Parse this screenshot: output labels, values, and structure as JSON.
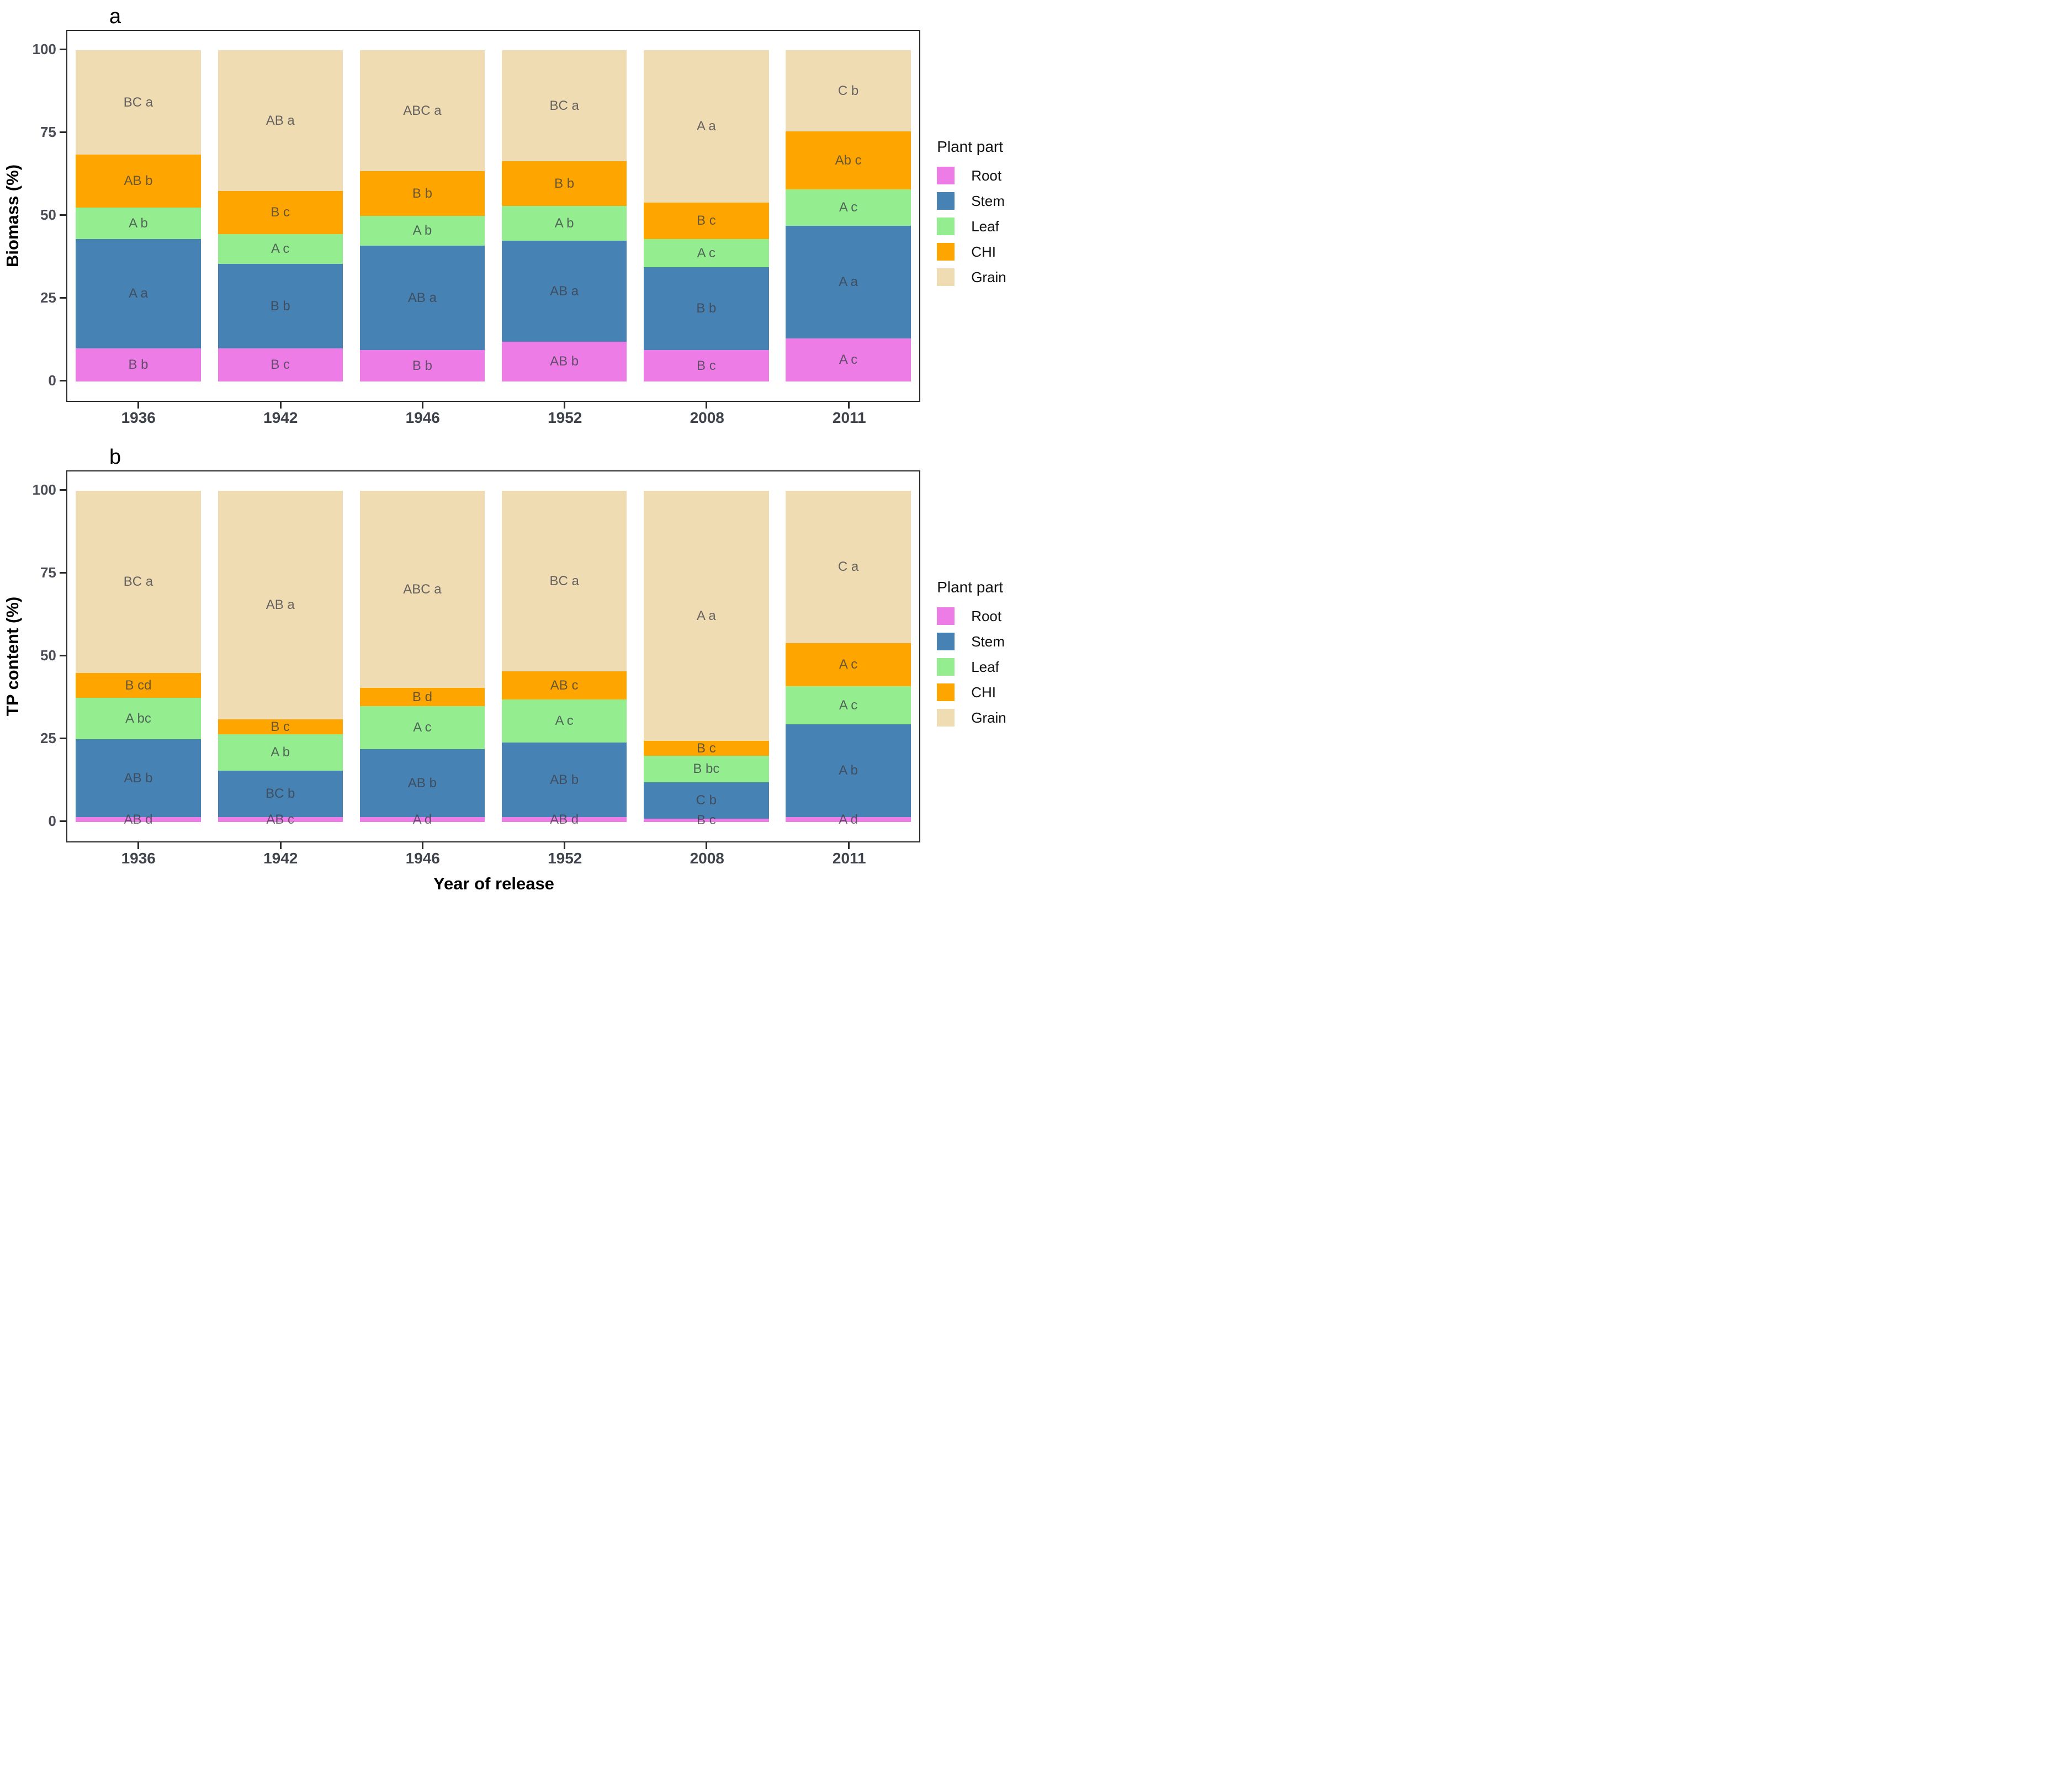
{
  "chart_data": [
    {
      "type": "bar",
      "stacked": true,
      "panel_letter": "a",
      "ylabel": "Biomass (%)",
      "xlabel": "",
      "ylim": [
        0,
        100
      ],
      "yticks": [
        100,
        75,
        50,
        25,
        0
      ],
      "grid": "off",
      "legend_position": "right",
      "legend_title": "Plant part",
      "categories": [
        "1936",
        "1942",
        "1946",
        "1952",
        "2008",
        "2011"
      ],
      "series": [
        {
          "name": "Root",
          "color": "#EE7CE6",
          "values": [
            10,
            10,
            9.5,
            12,
            9.5,
            13
          ],
          "labels": [
            "B b",
            "B c",
            "B b",
            "AB b",
            "B c",
            "A c"
          ]
        },
        {
          "name": "Stem",
          "color": "#4682B4",
          "values": [
            33,
            25.5,
            31.5,
            30.5,
            25,
            34
          ],
          "labels": [
            "A a",
            "B b",
            "AB a",
            "AB a",
            "B b",
            "A a"
          ]
        },
        {
          "name": "Leaf",
          "color": "#94EE90",
          "values": [
            9.5,
            9,
            9,
            10.5,
            8.5,
            11
          ],
          "labels": [
            "A b",
            "A c",
            "A b",
            "A b",
            "A c",
            "A c"
          ]
        },
        {
          "name": "CHI",
          "color": "#FFA500",
          "values": [
            16,
            13,
            13.5,
            13.5,
            11,
            17.5
          ],
          "labels": [
            "AB b",
            "B c",
            "B b",
            "B b",
            "B c",
            "Ab c"
          ]
        },
        {
          "name": "Grain",
          "color": "#F0DCB2",
          "values": [
            31.5,
            42.5,
            36.5,
            33.5,
            46,
            24.5
          ],
          "labels": [
            "BC a",
            "AB a",
            "ABC a",
            "BC a",
            "A a",
            "C b"
          ]
        }
      ]
    },
    {
      "type": "bar",
      "stacked": true,
      "panel_letter": "b",
      "ylabel": "TP content (%)",
      "xlabel": "Year of release",
      "ylim": [
        0,
        100
      ],
      "yticks": [
        100,
        75,
        50,
        25,
        0
      ],
      "grid": "off",
      "legend_position": "right",
      "legend_title": "Plant part",
      "categories": [
        "1936",
        "1942",
        "1946",
        "1952",
        "2008",
        "2011"
      ],
      "series": [
        {
          "name": "Root",
          "color": "#EE7CE6",
          "values": [
            1.5,
            1.5,
            1.5,
            1.5,
            1,
            1.5
          ],
          "labels": [
            "AB d",
            "AB c",
            "A d",
            "AB d",
            "B c",
            "A d"
          ]
        },
        {
          "name": "Stem",
          "color": "#4682B4",
          "values": [
            23.5,
            14,
            20.5,
            22.5,
            11,
            28
          ],
          "labels": [
            "AB b",
            "BC b",
            "AB b",
            "AB b",
            "C b",
            "A b"
          ]
        },
        {
          "name": "Leaf",
          "color": "#94EE90",
          "values": [
            12.5,
            11,
            13,
            13,
            8,
            11.5
          ],
          "labels": [
            "A bc",
            "A b",
            "A c",
            "A c",
            "B bc",
            "A c"
          ]
        },
        {
          "name": "CHI",
          "color": "#FFA500",
          "values": [
            7.5,
            4.5,
            5.5,
            8.5,
            4.5,
            13
          ],
          "labels": [
            "B cd",
            "B c",
            "B d",
            "AB c",
            "B c",
            "A c"
          ]
        },
        {
          "name": "Grain",
          "color": "#F0DCB2",
          "values": [
            55,
            69,
            59.5,
            54.5,
            75.5,
            46
          ],
          "labels": [
            "BC a",
            "AB a",
            "ABC a",
            "BC a",
            "A a",
            "C a"
          ]
        }
      ]
    }
  ]
}
